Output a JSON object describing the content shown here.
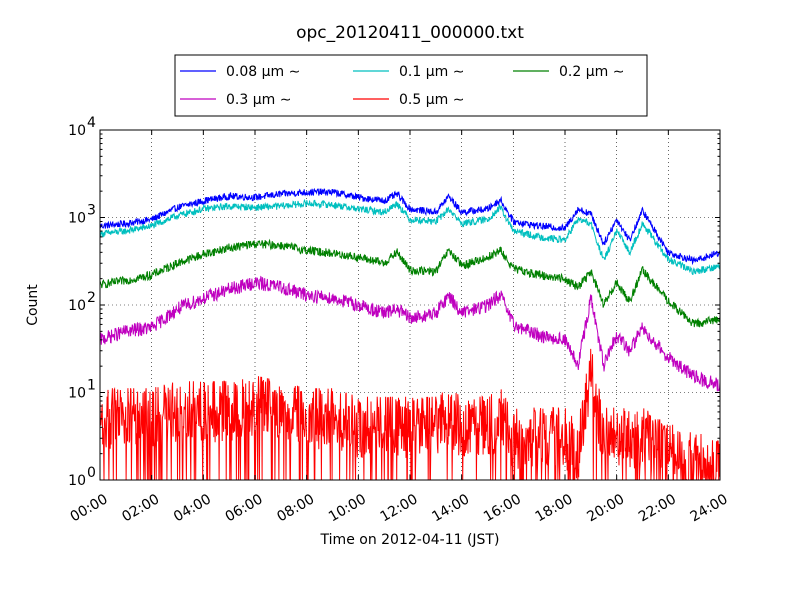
{
  "chart_data": {
    "type": "line",
    "title": "opc_20120411_000000.txt",
    "xlabel": "Time on 2012-04-11 (JST)",
    "ylabel": "Count",
    "xlim_hours": [
      0,
      24
    ],
    "ylim": [
      1,
      10000
    ],
    "yscale": "log",
    "grid": true,
    "legend_position": "top-center, above plot",
    "x_tick_labels": [
      "00:00",
      "02:00",
      "04:00",
      "06:00",
      "08:00",
      "10:00",
      "12:00",
      "14:00",
      "16:00",
      "18:00",
      "20:00",
      "22:00",
      "24:00"
    ],
    "y_tick_labels": [
      {
        "base": "10",
        "exp": "0"
      },
      {
        "base": "10",
        "exp": "1"
      },
      {
        "base": "10",
        "exp": "2"
      },
      {
        "base": "10",
        "exp": "3"
      },
      {
        "base": "10",
        "exp": "4"
      }
    ],
    "x": [
      0,
      1,
      2,
      3,
      4,
      5,
      6,
      7,
      8,
      9,
      10,
      11,
      11.5,
      12,
      13,
      13.5,
      14,
      15,
      15.5,
      16,
      17,
      18,
      18.5,
      19,
      19.5,
      20,
      20.5,
      21,
      22,
      23,
      24
    ],
    "series": [
      {
        "name": "0.08 μm ∼",
        "color": "#0000ff",
        "values": [
          800,
          850,
          950,
          1300,
          1550,
          1750,
          1700,
          1850,
          1950,
          1950,
          1700,
          1550,
          1850,
          1250,
          1150,
          1750,
          1150,
          1250,
          1600,
          900,
          800,
          750,
          1250,
          1100,
          500,
          950,
          550,
          1200,
          400,
          320,
          400
        ]
      },
      {
        "name": "0.1 μm ∼",
        "color": "#00bfbf",
        "values": [
          650,
          700,
          800,
          1050,
          1250,
          1350,
          1300,
          1350,
          1450,
          1400,
          1250,
          1150,
          1450,
          950,
          900,
          1250,
          850,
          950,
          1300,
          700,
          600,
          550,
          950,
          850,
          320,
          700,
          400,
          850,
          330,
          240,
          280
        ]
      },
      {
        "name": "0.2 μm ∼",
        "color": "#008000",
        "values": [
          170,
          190,
          220,
          300,
          380,
          450,
          500,
          480,
          420,
          390,
          350,
          300,
          400,
          250,
          240,
          420,
          280,
          350,
          420,
          260,
          220,
          200,
          160,
          240,
          100,
          180,
          110,
          250,
          110,
          60,
          70
        ]
      },
      {
        "name": "0.3 μm ∼",
        "color": "#bf00bf",
        "values": [
          40,
          50,
          55,
          90,
          120,
          150,
          180,
          160,
          130,
          120,
          100,
          80,
          90,
          70,
          80,
          130,
          80,
          100,
          130,
          60,
          45,
          40,
          20,
          120,
          20,
          45,
          30,
          55,
          25,
          15,
          12
        ]
      },
      {
        "name": "0.5 μm ∼",
        "color": "#ff0000",
        "values": [
          5,
          5,
          5,
          6,
          6,
          6,
          7,
          6,
          5,
          5,
          4,
          4,
          4,
          4,
          4,
          5,
          4,
          4,
          5,
          3,
          3,
          3,
          2,
          15,
          3,
          3,
          3,
          3,
          2,
          1.5,
          1.5
        ]
      }
    ]
  }
}
